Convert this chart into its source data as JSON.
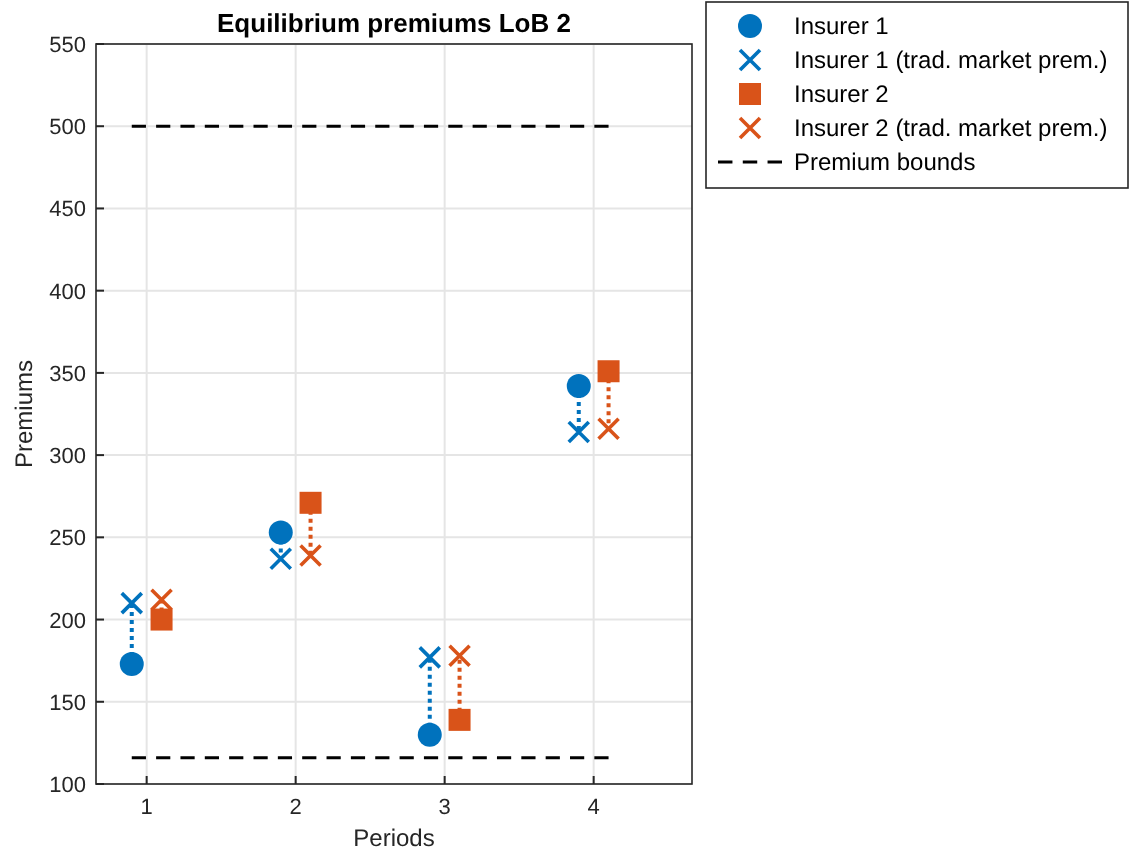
{
  "chart_data": {
    "type": "scatter",
    "title": "Equilibrium premiums LoB 2",
    "xlabel": "Periods",
    "ylabel": "Premiums",
    "xlim": [
      0.66,
      4.66
    ],
    "xticks": [
      1,
      2,
      3,
      4
    ],
    "ylim": [
      100,
      550
    ],
    "yticks": [
      100,
      150,
      200,
      250,
      300,
      350,
      400,
      450,
      500,
      550
    ],
    "grid": true,
    "legend": "top right",
    "series": [
      {
        "name": "Insurer 1",
        "color": "#0072bd",
        "marker": "circle",
        "x": [
          0.9,
          1.9,
          2.9,
          3.9
        ],
        "values": [
          173,
          253,
          130,
          342
        ]
      },
      {
        "name": "Insurer 1 (trad. market prem.)",
        "color": "#0072bd",
        "marker": "cross",
        "x": [
          0.9,
          1.9,
          2.9,
          3.9
        ],
        "values": [
          210,
          237,
          177,
          314
        ]
      },
      {
        "name": "Insurer 2",
        "color": "#d95319",
        "marker": "square",
        "x": [
          1.1,
          2.1,
          3.1,
          4.1
        ],
        "values": [
          200,
          271,
          139,
          351
        ]
      },
      {
        "name": "Insurer 2 (trad. market prem.)",
        "color": "#d95319",
        "marker": "cross",
        "x": [
          1.1,
          2.1,
          3.1,
          4.1
        ],
        "values": [
          212,
          239,
          178,
          316
        ]
      },
      {
        "name": "Premium bounds",
        "type": "line",
        "color": "#000000",
        "marker": "none",
        "line_style": "dashed",
        "x": [
          0.9,
          4.1
        ],
        "values": [
          500,
          500
        ]
      },
      {
        "name": null,
        "type": "line",
        "color": "#000000",
        "marker": "none",
        "line_style": "dashed",
        "x": [
          0.9,
          4.1
        ],
        "values": [
          116,
          116
        ]
      },
      {
        "name": null,
        "type": "line",
        "color": "#0072bd",
        "marker": "none",
        "line_style": "dotted",
        "x": [
          0.9,
          0.9,
          null,
          1.9,
          1.9,
          null,
          2.9,
          2.9,
          null,
          3.9,
          3.9
        ],
        "values": [
          173,
          210,
          null,
          253,
          237,
          null,
          130,
          177,
          null,
          342,
          314
        ]
      },
      {
        "name": null,
        "type": "line",
        "color": "#d95319",
        "marker": "none",
        "line_style": "dotted",
        "x": [
          1.1,
          1.1,
          null,
          2.1,
          2.1,
          null,
          3.1,
          3.1,
          null,
          4.1,
          4.1
        ],
        "values": [
          200,
          212,
          null,
          271,
          239,
          null,
          139,
          178,
          null,
          351,
          316
        ]
      }
    ]
  }
}
